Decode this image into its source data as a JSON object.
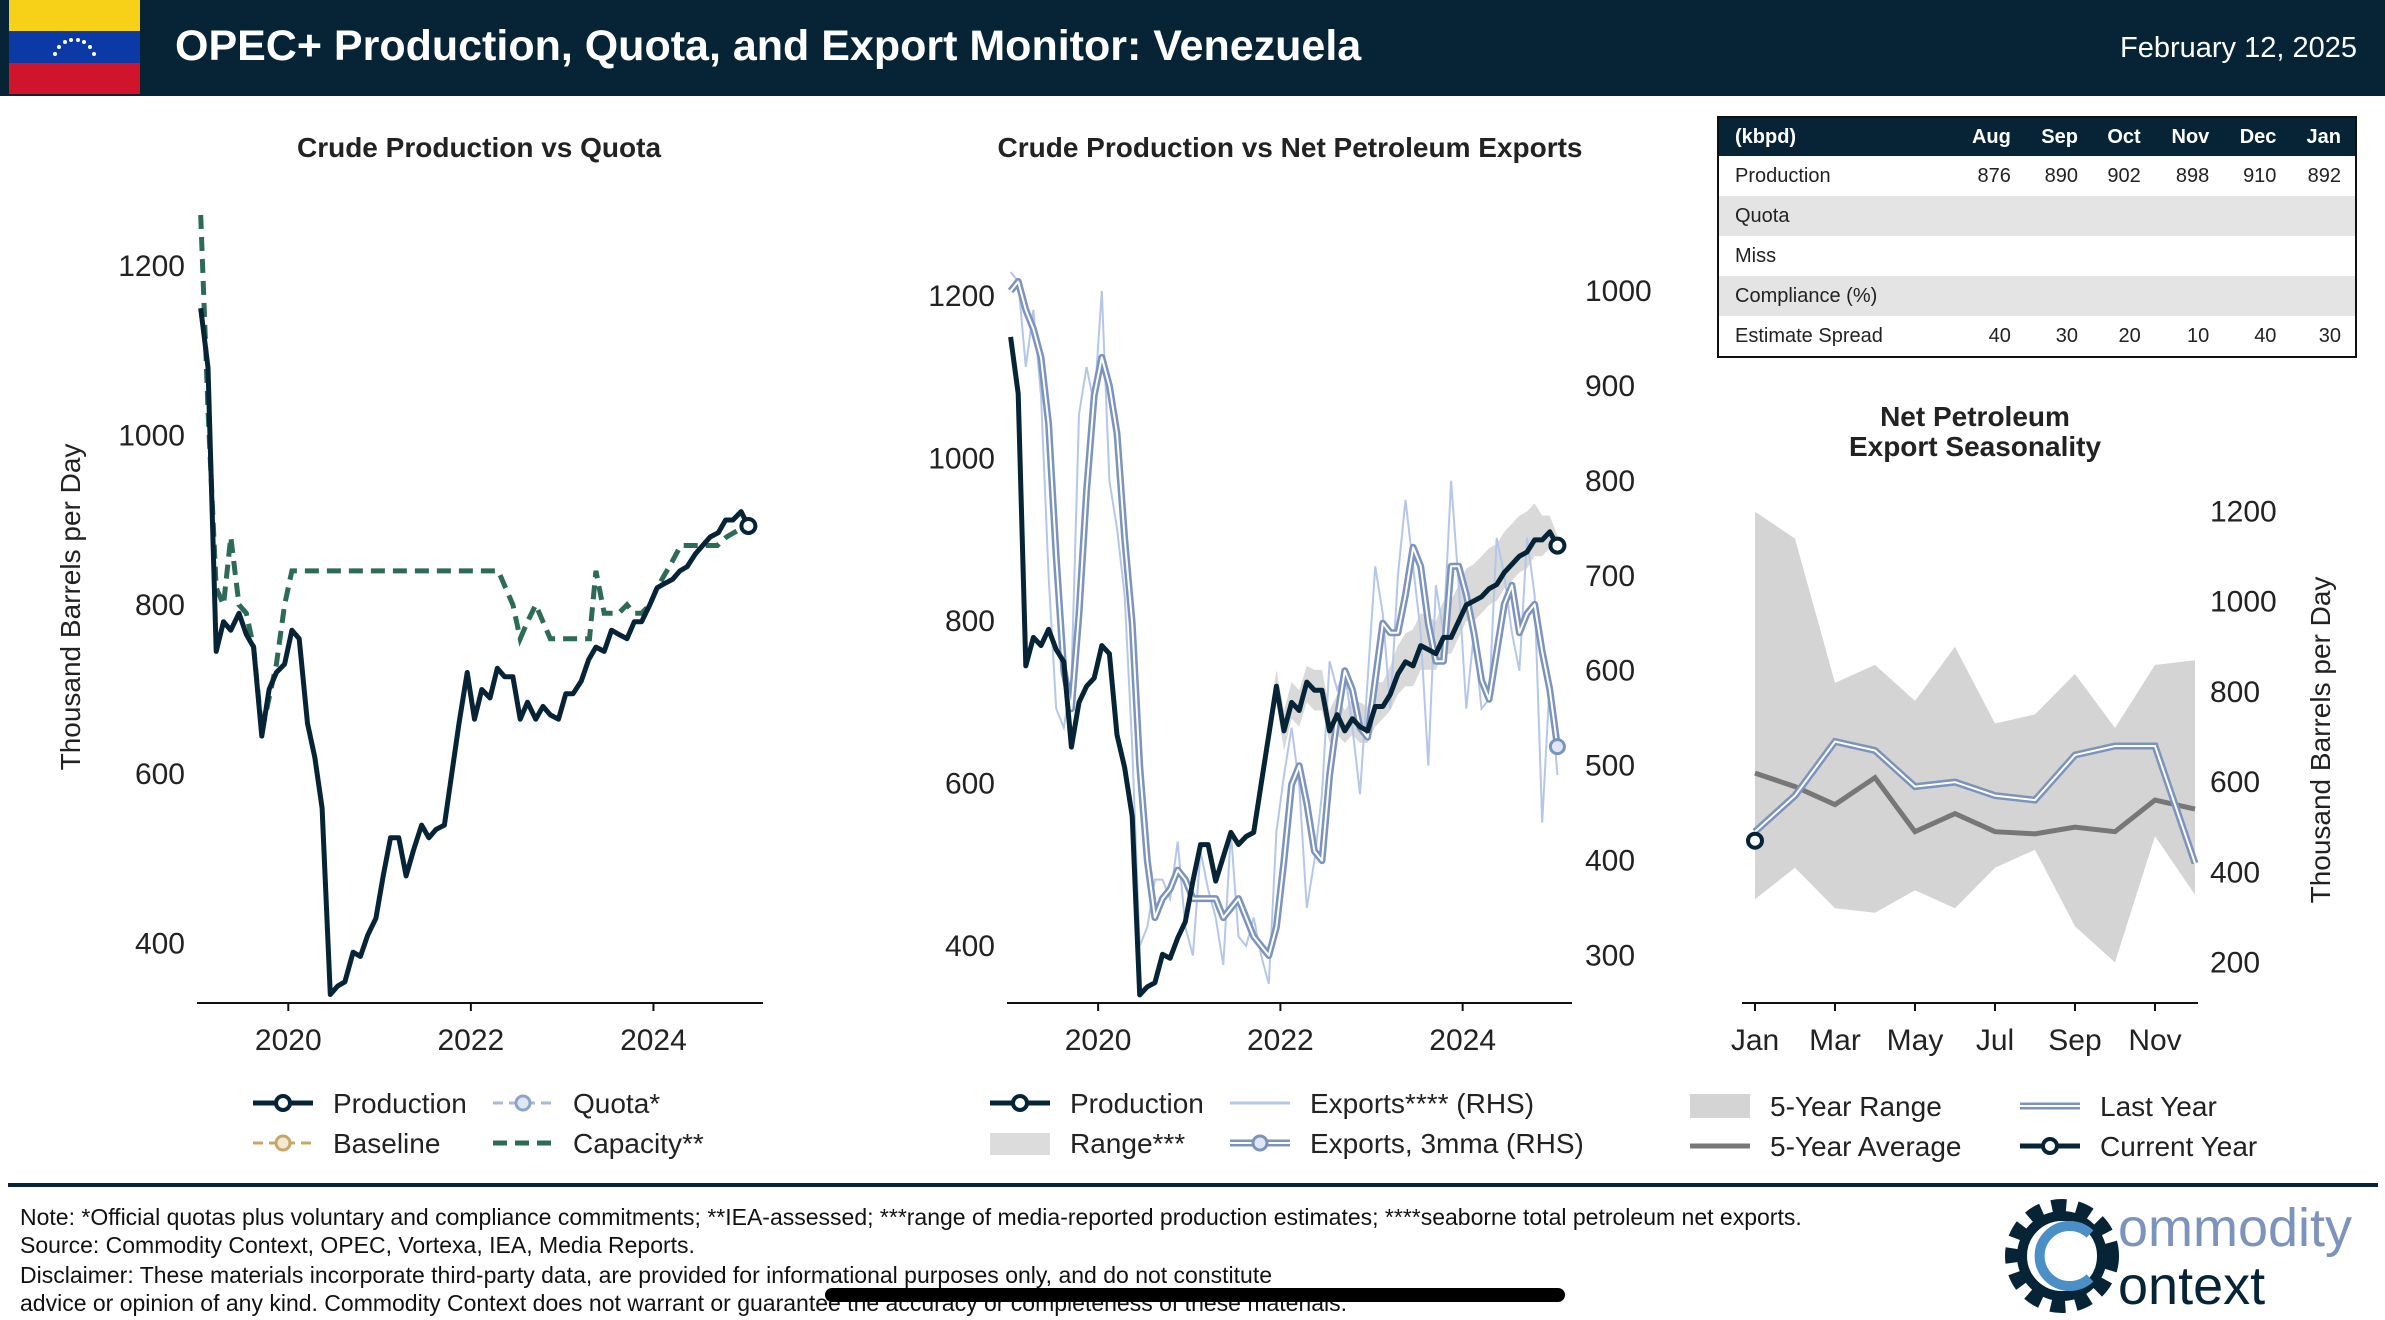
{
  "header": {
    "title": "OPEC+ Production, Quota, and Export Monitor: Venezuela",
    "date": "February 12, 2025"
  },
  "colors": {
    "navy": "#062436",
    "capacity": "#2e6b56",
    "exports": "#7b93bd",
    "exports_light": "#b5c7e8",
    "range": "#d4d4d4",
    "avg": "#777777",
    "baseline": "#c9a56a"
  },
  "chart_data": [
    {
      "id": "left",
      "type": "line",
      "title": "Crude Production vs Quota",
      "ylabel": "Thousand Barrels per Day",
      "xlabel": "",
      "xlim": [
        2019.0,
        2025.2
      ],
      "ylim": [
        330,
        1260
      ],
      "xticks": [
        2020,
        2022,
        2024
      ],
      "yticks": [
        400,
        600,
        800,
        1000,
        1200
      ],
      "series": [
        {
          "name": "Production",
          "style": "solid",
          "x": [
            2019.04,
            2019.12,
            2019.21,
            2019.29,
            2019.37,
            2019.46,
            2019.54,
            2019.62,
            2019.71,
            2019.79,
            2019.87,
            2019.96,
            2020.04,
            2020.12,
            2020.21,
            2020.29,
            2020.37,
            2020.46,
            2020.54,
            2020.62,
            2020.71,
            2020.79,
            2020.87,
            2020.96,
            2021.04,
            2021.12,
            2021.21,
            2021.29,
            2021.37,
            2021.46,
            2021.54,
            2021.62,
            2021.71,
            2021.79,
            2021.87,
            2021.96,
            2022.04,
            2022.12,
            2022.21,
            2022.29,
            2022.37,
            2022.46,
            2022.54,
            2022.62,
            2022.71,
            2022.79,
            2022.87,
            2022.96,
            2023.04,
            2023.12,
            2023.21,
            2023.29,
            2023.37,
            2023.46,
            2023.54,
            2023.62,
            2023.71,
            2023.79,
            2023.87,
            2023.96,
            2024.04,
            2024.12,
            2024.21,
            2024.29,
            2024.37,
            2024.46,
            2024.54,
            2024.62,
            2024.71,
            2024.79,
            2024.87,
            2024.96,
            2025.04
          ],
          "values": [
            1150,
            1080,
            745,
            780,
            770,
            790,
            765,
            750,
            645,
            700,
            720,
            730,
            770,
            760,
            660,
            620,
            560,
            340,
            350,
            355,
            390,
            385,
            410,
            430,
            480,
            525,
            525,
            480,
            510,
            540,
            525,
            535,
            540,
            600,
            660,
            720,
            665,
            700,
            690,
            725,
            715,
            715,
            665,
            685,
            665,
            680,
            670,
            665,
            695,
            695,
            710,
            735,
            750,
            745,
            770,
            765,
            760,
            780,
            780,
            800,
            820,
            825,
            830,
            840,
            845,
            860,
            870,
            880,
            885,
            900,
            900,
            910,
            893
          ]
        },
        {
          "name": "Capacity**",
          "style": "dash",
          "x": [
            2019.04,
            2019.12,
            2019.21,
            2019.29,
            2019.37,
            2019.46,
            2019.54,
            2019.62,
            2019.71,
            2019.79,
            2019.87,
            2019.96,
            2020.04,
            2020.12,
            2020.3,
            2020.5,
            2021.0,
            2021.5,
            2022.0,
            2022.3,
            2022.46,
            2022.54,
            2022.62,
            2022.71,
            2022.79,
            2022.87,
            2022.96,
            2023.1,
            2023.3,
            2023.37,
            2023.46,
            2023.54,
            2023.62,
            2023.71,
            2023.79,
            2023.87,
            2023.96,
            2024.04,
            2024.2,
            2024.3,
            2024.5,
            2024.7,
            2024.8,
            2025.04
          ],
          "values": [
            1260,
            1030,
            820,
            800,
            880,
            800,
            790,
            750,
            650,
            690,
            730,
            800,
            840,
            840,
            840,
            840,
            840,
            840,
            840,
            840,
            800,
            760,
            780,
            800,
            780,
            760,
            760,
            760,
            760,
            840,
            790,
            790,
            790,
            800,
            790,
            790,
            800,
            820,
            850,
            870,
            870,
            870,
            880,
            895
          ]
        }
      ],
      "legend": [
        "Production",
        "Quota*",
        "Baseline",
        "Capacity**"
      ]
    },
    {
      "id": "middle",
      "type": "line",
      "title": "Crude Production vs Net Petroleum Exports",
      "xlim": [
        2019.0,
        2025.2
      ],
      "ylim": [
        330,
        1300
      ],
      "ylim_right": [
        250,
        1080
      ],
      "xticks": [
        2020,
        2022,
        2024
      ],
      "yticks": [
        400,
        600,
        800,
        1000,
        1200
      ],
      "yticks_right": [
        300,
        400,
        500,
        600,
        700,
        800,
        900,
        1000
      ],
      "production": [
        1150,
        1080,
        745,
        780,
        770,
        790,
        765,
        750,
        645,
        700,
        720,
        730,
        770,
        760,
        660,
        620,
        560,
        340,
        350,
        355,
        390,
        385,
        410,
        430,
        480,
        525,
        525,
        480,
        510,
        540,
        525,
        535,
        540,
        600,
        660,
        720,
        665,
        700,
        690,
        725,
        715,
        715,
        665,
        685,
        665,
        680,
        670,
        665,
        695,
        695,
        710,
        735,
        750,
        745,
        770,
        765,
        760,
        780,
        780,
        800,
        820,
        825,
        830,
        840,
        845,
        860,
        870,
        880,
        885,
        900,
        900,
        910,
        893
      ],
      "range_low": [
        1150,
        1080,
        745,
        780,
        770,
        790,
        765,
        750,
        645,
        700,
        720,
        730,
        770,
        760,
        660,
        620,
        560,
        340,
        350,
        355,
        390,
        385,
        410,
        430,
        480,
        525,
        525,
        480,
        510,
        540,
        525,
        535,
        540,
        600,
        650,
        700,
        640,
        680,
        670,
        700,
        690,
        690,
        650,
        660,
        650,
        660,
        650,
        650,
        670,
        680,
        690,
        710,
        720,
        720,
        740,
        740,
        740,
        760,
        760,
        780,
        800,
        800,
        810,
        820,
        825,
        840,
        850,
        860,
        865,
        880,
        880,
        890,
        880
      ],
      "range_high": [
        1150,
        1080,
        745,
        780,
        770,
        790,
        765,
        750,
        645,
        700,
        720,
        730,
        770,
        760,
        660,
        620,
        560,
        340,
        350,
        355,
        390,
        385,
        410,
        430,
        480,
        525,
        525,
        480,
        510,
        540,
        525,
        535,
        540,
        600,
        675,
        740,
        690,
        725,
        715,
        745,
        740,
        740,
        690,
        710,
        690,
        705,
        700,
        695,
        725,
        725,
        745,
        770,
        785,
        790,
        810,
        805,
        800,
        825,
        825,
        845,
        865,
        870,
        880,
        890,
        895,
        910,
        920,
        930,
        935,
        945,
        930,
        930,
        905
      ],
      "exports_monthly": [
        1020,
        1010,
        920,
        980,
        890,
        700,
        560,
        540,
        590,
        870,
        920,
        880,
        1000,
        800,
        750,
        680,
        520,
        310,
        330,
        380,
        380,
        360,
        420,
        330,
        300,
        410,
        370,
        340,
        290,
        430,
        320,
        310,
        340,
        300,
        270,
        430,
        490,
        540,
        480,
        350,
        400,
        470,
        610,
        580,
        600,
        540,
        470,
        590,
        710,
        660,
        560,
        700,
        780,
        710,
        640,
        500,
        690,
        640,
        800,
        690,
        560,
        640,
        560,
        570,
        740,
        700,
        640,
        600,
        740,
        680,
        440,
        590,
        490
      ],
      "exports_3mma": [
        1000,
        1010,
        980,
        960,
        930,
        860,
        720,
        600,
        560,
        660,
        790,
        890,
        930,
        900,
        850,
        740,
        650,
        500,
        400,
        340,
        360,
        370,
        390,
        380,
        360,
        360,
        360,
        360,
        340,
        350,
        360,
        340,
        320,
        310,
        300,
        330,
        400,
        480,
        500,
        460,
        410,
        400,
        490,
        550,
        600,
        580,
        540,
        530,
        590,
        650,
        640,
        640,
        680,
        730,
        710,
        650,
        610,
        610,
        710,
        710,
        680,
        640,
        590,
        570,
        620,
        670,
        690,
        640,
        660,
        670,
        620,
        580,
        520
      ]
    },
    {
      "id": "right",
      "type": "line",
      "title_line1": "Net Petroleum",
      "title_line2": "Export Seasonality",
      "ylabel": "Thousand Barrels per Day",
      "categories": [
        "Jan",
        "Feb",
        "Mar",
        "Apr",
        "May",
        "Jun",
        "Jul",
        "Aug",
        "Sep",
        "Oct",
        "Nov",
        "Dec"
      ],
      "xtick_labels": [
        "Jan",
        "Mar",
        "May",
        "Jul",
        "Sep",
        "Nov"
      ],
      "ylim": [
        110,
        1270
      ],
      "yticks": [
        200,
        400,
        600,
        800,
        1000,
        1200
      ],
      "range_high": [
        1200,
        1140,
        820,
        860,
        780,
        900,
        730,
        750,
        840,
        720,
        860,
        870
      ],
      "range_low": [
        340,
        410,
        320,
        310,
        360,
        320,
        410,
        450,
        280,
        200,
        480,
        350
      ],
      "avg": [
        620,
        590,
        550,
        610,
        490,
        530,
        490,
        485,
        500,
        490,
        560,
        540
      ],
      "last_year": [
        490,
        570,
        690,
        670,
        590,
        600,
        570,
        560,
        660,
        680,
        680,
        420
      ],
      "current_year": [
        470
      ],
      "legend": [
        "5-Year Range",
        "Last Year",
        "5-Year Average",
        "Current Year"
      ]
    }
  ],
  "table": {
    "headers": [
      "(kbpd)",
      "Aug",
      "Sep",
      "Oct",
      "Nov",
      "Dec",
      "Jan"
    ],
    "rows": [
      {
        "label": "Production",
        "cells": [
          "876",
          "890",
          "902",
          "898",
          "910",
          "892"
        ]
      },
      {
        "label": "Quota",
        "cells": [
          "",
          "",
          "",
          "",
          "",
          ""
        ]
      },
      {
        "label": "Miss",
        "cells": [
          "",
          "",
          "",
          "",
          "",
          ""
        ]
      },
      {
        "label": "Compliance (%)",
        "cells": [
          "",
          "",
          "",
          "",
          "",
          ""
        ]
      },
      {
        "label": "Estimate Spread",
        "cells": [
          "40",
          "30",
          "20",
          "10",
          "40",
          "30"
        ]
      }
    ]
  },
  "legend_middle": [
    "Production",
    "Exports**** (RHS)",
    "Range***",
    "Exports, 3mma (RHS)"
  ],
  "footer": {
    "note": "Note: *Official quotas plus voluntary and compliance commitments; **IEA-assessed; ***range of media-reported production estimates; ****seaborne total petroleum net exports.",
    "source": "Source: Commodity Context, OPEC, Vortexa, IEA, Media Reports.",
    "disclaimer1": "Disclaimer: These materials incorporate third-party data, are provided for informational purposes only, and do not constitute",
    "disclaimer2": "advice or opinion of any kind. Commodity Context does not warrant or guarantee the accuracy or completeness of these materials."
  },
  "logo": {
    "line1": "ommodity",
    "line2": "ontext"
  }
}
